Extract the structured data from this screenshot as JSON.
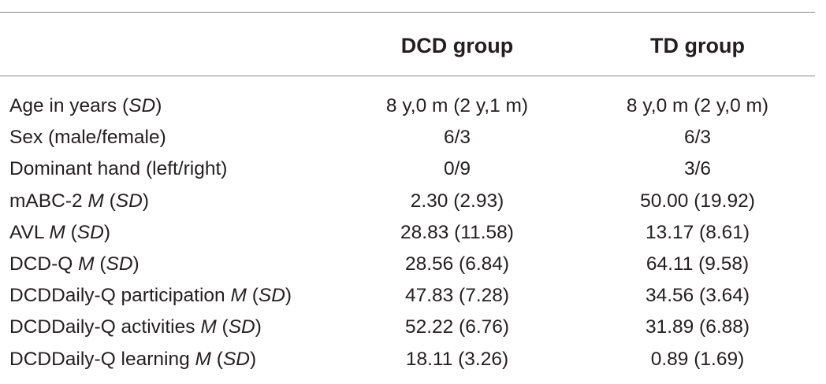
{
  "table": {
    "columns": [
      "",
      "DCD group",
      "TD group"
    ],
    "rows": [
      {
        "label_main": "Age in years",
        "label_stat": "",
        "label_sd": "SD",
        "dcd": "8 y,0 m (2 y,1 m)",
        "td": "8 y,0 m (2 y,0 m)"
      },
      {
        "label_main": "Sex (male/female)",
        "label_stat": "",
        "label_sd": "",
        "dcd": "6/3",
        "td": "6/3"
      },
      {
        "label_main": "Dominant hand (left/right)",
        "label_stat": "",
        "label_sd": "",
        "dcd": "0/9",
        "td": "3/6"
      },
      {
        "label_main": "mABC-2",
        "label_stat": "M",
        "label_sd": "SD",
        "dcd": "2.30 (2.93)",
        "td": "50.00 (19.92)"
      },
      {
        "label_main": "AVL",
        "label_stat": "M",
        "label_sd": "SD",
        "dcd": "28.83 (11.58)",
        "td": "13.17 (8.61)"
      },
      {
        "label_main": "DCD-Q",
        "label_stat": "M",
        "label_sd": "SD",
        "dcd": "28.56 (6.84)",
        "td": "64.11 (9.58)"
      },
      {
        "label_main": "DCDDaily-Q participation",
        "label_stat": "M",
        "label_sd": "SD",
        "dcd": "47.83 (7.28)",
        "td": "34.56 (3.64)"
      },
      {
        "label_main": "DCDDaily-Q activities",
        "label_stat": "M",
        "label_sd": "SD",
        "dcd": "52.22 (6.76)",
        "td": "31.89 (6.88)"
      },
      {
        "label_main": "DCDDaily-Q learning",
        "label_stat": "M",
        "label_sd": "SD",
        "dcd": "18.11 (3.26)",
        "td": "0.89 (1.69)"
      }
    ]
  }
}
